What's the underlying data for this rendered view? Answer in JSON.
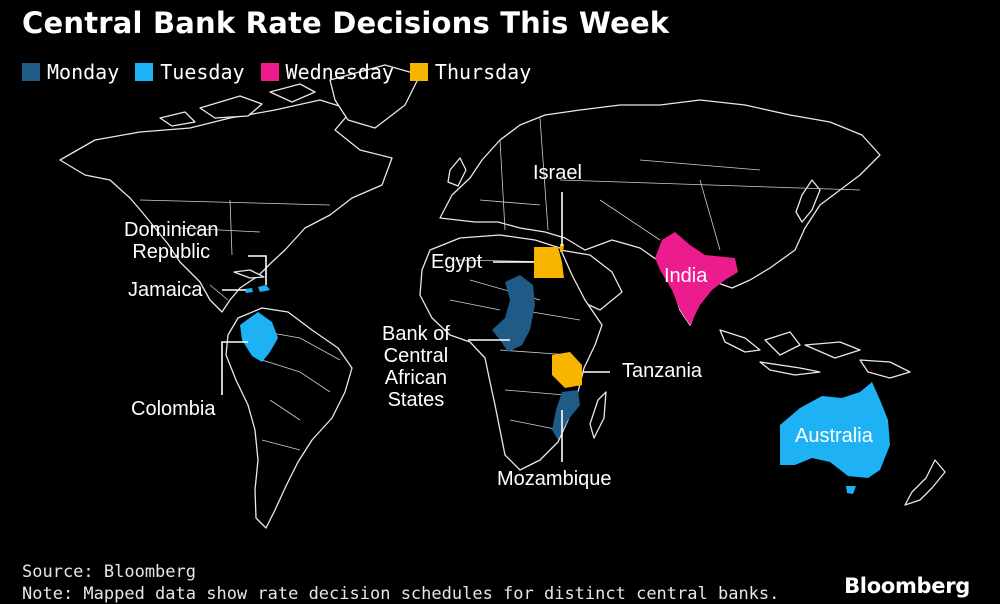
{
  "title": "Central Bank Rate Decisions This Week",
  "legend": [
    {
      "label": "Monday",
      "color": "#1f5b86"
    },
    {
      "label": "Tuesday",
      "color": "#1eb2f5"
    },
    {
      "label": "Wednesday",
      "color": "#ec1b8e"
    },
    {
      "label": "Thursday",
      "color": "#f7b500"
    }
  ],
  "countries": {
    "dominican_republic": {
      "label": "Dominican\nRepublic",
      "day": "Tuesday"
    },
    "jamaica": {
      "label": "Jamaica",
      "day": "Tuesday"
    },
    "colombia": {
      "label": "Colombia",
      "day": "Tuesday"
    },
    "israel": {
      "label": "Israel",
      "day": "Thursday"
    },
    "egypt": {
      "label": "Egypt",
      "day": "Thursday"
    },
    "india": {
      "label": "India",
      "day": "Wednesday"
    },
    "beac": {
      "label": "Bank of\nCentral\nAfrican\nStates",
      "day": "Monday"
    },
    "tanzania": {
      "label": "Tanzania",
      "day": "Thursday"
    },
    "mozambique": {
      "label": "Mozambique",
      "day": "Monday"
    },
    "australia": {
      "label": "Australia",
      "day": "Tuesday"
    }
  },
  "source": "Source: Bloomberg",
  "note": "Note: Mapped data show rate decision schedules for distinct central banks.",
  "brand": "Bloomberg"
}
